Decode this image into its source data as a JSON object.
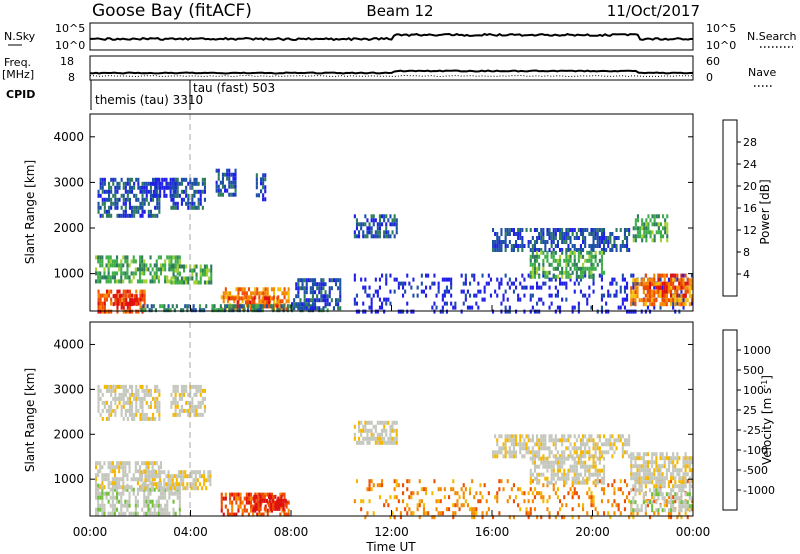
{
  "header": {
    "station": "Goose Bay (fitACF)",
    "beam": "Beam 12",
    "date": "11/Oct/2017"
  },
  "strip_panels": {
    "nsky_label": "N.Sky",
    "nsky_ticks": [
      "10^5",
      "10^0"
    ],
    "nsearch_label": "N.Search",
    "nsearch_ticks": [
      "10^5",
      "10^0"
    ],
    "freq_label_1": "Freq.",
    "freq_label_2": "[MHz]",
    "freq_ticks": [
      "18",
      "8"
    ],
    "nave_label": "Nave",
    "nave_ticks": [
      "60",
      "0"
    ],
    "cpid_label": "CPID",
    "cpid_modes": [
      "themis (tau) 3310",
      "tau (fast) 503"
    ]
  },
  "colors": {
    "power": [
      "#1f1fe6",
      "#1c4fa6",
      "#2e7b5c",
      "#3fae4a",
      "#a6d133",
      "#f5c000",
      "#f58a00",
      "#ee4d00",
      "#e01010"
    ],
    "velocity": [
      "#e01010",
      "#ee4d00",
      "#f58a00",
      "#f5b800",
      "#c4c7bd",
      "#c4c7bd",
      "#70c03a",
      "#3f9b5c",
      "#2e6aa6",
      "#1f1fe6"
    ]
  },
  "chart_data": [
    {
      "type": "heatmap",
      "name": "Power",
      "ylabel": "Slant Range [km]",
      "colorbar_label": "Power [dB]",
      "colorbar_ticks": [
        "4",
        "8",
        "12",
        "16",
        "20",
        "24",
        "28"
      ],
      "x_range_hours": [
        0,
        24
      ],
      "y_range_km": [
        180,
        4500
      ],
      "y_ticks": [
        1000,
        2000,
        3000,
        4000
      ],
      "regions": [
        {
          "t0": 0.3,
          "t1": 2.2,
          "r0": 180,
          "r1": 650,
          "level": 8
        },
        {
          "t0": 0.9,
          "t1": 1.9,
          "r0": 300,
          "r1": 550,
          "level": 9
        },
        {
          "t0": 0.2,
          "t1": 3.6,
          "r0": 800,
          "r1": 1400,
          "level": 4
        },
        {
          "t0": 0.3,
          "t1": 2.8,
          "r0": 2300,
          "r1": 3100,
          "level": 2
        },
        {
          "t0": 2.5,
          "t1": 3.5,
          "r0": 2700,
          "r1": 3100,
          "level": 1
        },
        {
          "t0": 3.2,
          "t1": 4.6,
          "r0": 2400,
          "r1": 3100,
          "level": 2
        },
        {
          "t0": 5.0,
          "t1": 5.8,
          "r0": 2700,
          "r1": 3300,
          "level": 2
        },
        {
          "t0": 6.6,
          "t1": 7.0,
          "r0": 2600,
          "r1": 3200,
          "level": 2
        },
        {
          "t0": 3.2,
          "t1": 4.8,
          "r0": 800,
          "r1": 1200,
          "level": 4
        },
        {
          "t0": 5.2,
          "t1": 7.9,
          "r0": 200,
          "r1": 700,
          "level": 7
        },
        {
          "t0": 5.5,
          "t1": 7.5,
          "r0": 300,
          "r1": 500,
          "level": 8
        },
        {
          "t0": 2.0,
          "t1": 9.5,
          "r0": 190,
          "r1": 330,
          "level": 3
        },
        {
          "t0": 8.0,
          "t1": 10.0,
          "r0": 200,
          "r1": 900,
          "level": 2
        },
        {
          "t0": 10.5,
          "t1": 12.2,
          "r0": 1800,
          "r1": 2300,
          "level": 2
        },
        {
          "t0": 10.5,
          "t1": 24.0,
          "r0": 180,
          "r1": 1000,
          "level": 1
        },
        {
          "t0": 16.0,
          "t1": 21.5,
          "r0": 1500,
          "r1": 2000,
          "level": 2
        },
        {
          "t0": 17.5,
          "t1": 20.5,
          "r0": 900,
          "r1": 1500,
          "level": 4
        },
        {
          "t0": 21.6,
          "t1": 23.0,
          "r0": 1700,
          "r1": 2300,
          "level": 4
        },
        {
          "t0": 21.5,
          "t1": 24.0,
          "r0": 300,
          "r1": 900,
          "level": 7
        },
        {
          "t0": 22.0,
          "t1": 23.8,
          "r0": 500,
          "r1": 1000,
          "level": 8
        }
      ]
    },
    {
      "type": "heatmap",
      "name": "Velocity",
      "ylabel": "Slant Range [km]",
      "xlabel": "Time UT",
      "colorbar_label": "Velocity [m s^-1]",
      "colorbar_ticks": [
        "1000",
        "500",
        "100",
        "25",
        "-25",
        "-100",
        "-500",
        "-1000"
      ],
      "x_range_hours": [
        0,
        24
      ],
      "x_ticks": [
        "00:00",
        "04:00",
        "08:00",
        "12:00",
        "16:00",
        "20:00",
        "00:00"
      ],
      "y_range_km": [
        180,
        4500
      ],
      "y_ticks": [
        1000,
        2000,
        3000,
        4000
      ],
      "regions": [
        {
          "t0": 0.2,
          "t1": 3.6,
          "r0": 200,
          "r1": 900,
          "level": 6
        },
        {
          "t0": 0.2,
          "t1": 2.8,
          "r0": 800,
          "r1": 1400,
          "level": 5
        },
        {
          "t0": 0.3,
          "t1": 2.8,
          "r0": 2300,
          "r1": 3100,
          "level": 5
        },
        {
          "t0": 3.2,
          "t1": 4.6,
          "r0": 2400,
          "r1": 3100,
          "level": 5
        },
        {
          "t0": 2.0,
          "t1": 4.8,
          "r0": 800,
          "r1": 1200,
          "level": 5
        },
        {
          "t0": 5.2,
          "t1": 7.9,
          "r0": 200,
          "r1": 700,
          "level": 2
        },
        {
          "t0": 6.5,
          "t1": 7.8,
          "r0": 300,
          "r1": 650,
          "level": 1
        },
        {
          "t0": 10.5,
          "t1": 12.2,
          "r0": 1800,
          "r1": 2300,
          "level": 5
        },
        {
          "t0": 10.5,
          "t1": 24.0,
          "r0": 180,
          "r1": 1000,
          "level": 3
        },
        {
          "t0": 16.0,
          "t1": 21.5,
          "r0": 1500,
          "r1": 2000,
          "level": 5
        },
        {
          "t0": 17.5,
          "t1": 20.5,
          "r0": 900,
          "r1": 1500,
          "level": 5
        },
        {
          "t0": 21.5,
          "t1": 24.0,
          "r0": 800,
          "r1": 1600,
          "level": 5
        },
        {
          "t0": 21.5,
          "t1": 24.0,
          "r0": 300,
          "r1": 800,
          "level": 6
        }
      ]
    }
  ]
}
